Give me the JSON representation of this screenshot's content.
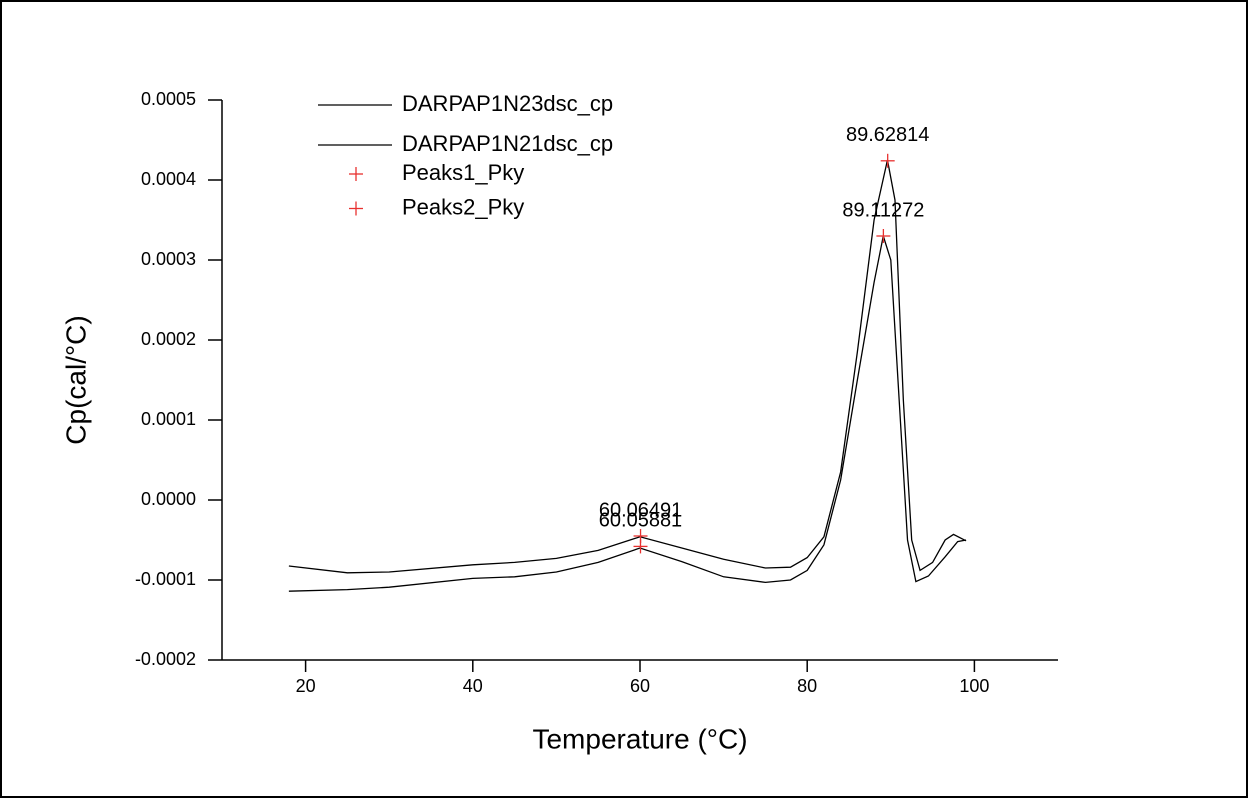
{
  "chart_data": {
    "type": "line",
    "x_label": "Temperature (°C)",
    "y_label": "Cp(cal/°C)",
    "xlim": [
      10,
      110
    ],
    "xticks": [
      20,
      40,
      60,
      80,
      100
    ],
    "ylim": [
      -0.0002,
      0.0005
    ],
    "yticks": [
      -0.0002,
      -0.0001,
      {
        "value": 0,
        "label": "0.0000"
      },
      0.0001,
      0.0002,
      0.0003,
      0.0004,
      0.0005
    ],
    "series": [
      {
        "name": "DARPAP1N23dsc_cp",
        "type": "line",
        "color": "#000000",
        "x": [
          18,
          25,
          30,
          40,
          45,
          50,
          55,
          60,
          65,
          70,
          75,
          78,
          80,
          82,
          84,
          86,
          88,
          89.6,
          90.5,
          91.5,
          92.5,
          93.5,
          95,
          96.5,
          97.5,
          99
        ],
        "values": [
          -8.25e-05,
          -9.1e-05,
          -9e-05,
          -8.1e-05,
          -7.8e-05,
          -7.3e-05,
          -6.3e-05,
          -4.6e-05,
          -6e-05,
          -7.4e-05,
          -8.5e-05,
          -8.4e-05,
          -7.2e-05,
          -4.6e-05,
          3.5e-05,
          0.000185,
          0.00035,
          0.000425,
          0.000375,
          0.000125,
          -5e-05,
          -8.8e-05,
          -7.8e-05,
          -5e-05,
          -4.3e-05,
          -5.1e-05
        ]
      },
      {
        "name": "DARPAP1N21dsc_cp",
        "type": "line",
        "color": "#000000",
        "x": [
          18,
          25,
          30,
          40,
          45,
          50,
          55,
          60,
          65,
          70,
          75,
          78,
          80,
          82,
          84,
          86,
          88,
          89.1,
          90,
          91,
          92,
          93,
          94.5,
          96.5,
          98,
          99
        ],
        "values": [
          -0.000114,
          -0.000112,
          -0.000109,
          -9.8e-05,
          -9.6e-05,
          -9e-05,
          -7.8e-05,
          -6e-05,
          -7.7e-05,
          -9.6e-05,
          -0.000103,
          -0.0001,
          -8.8e-05,
          -5.6e-05,
          2.5e-05,
          0.00015,
          0.000272,
          0.00033,
          0.0003,
          0.000125,
          -5e-05,
          -0.000102,
          -9.5e-05,
          -7.1e-05,
          -5.2e-05,
          -5e-05
        ]
      },
      {
        "name": "Peaks1_Pky",
        "type": "scatter",
        "marker": "+",
        "color": "#e8312f",
        "x": [
          89.62814,
          60.06491
        ],
        "values": [
          0.000424,
          -4.5e-05
        ]
      },
      {
        "name": "Peaks2_Pky",
        "type": "scatter",
        "marker": "+",
        "color": "#e8312f",
        "x": [
          89.11272,
          60.05881
        ],
        "values": [
          0.00033,
          -5.8e-05
        ]
      }
    ]
  }
}
